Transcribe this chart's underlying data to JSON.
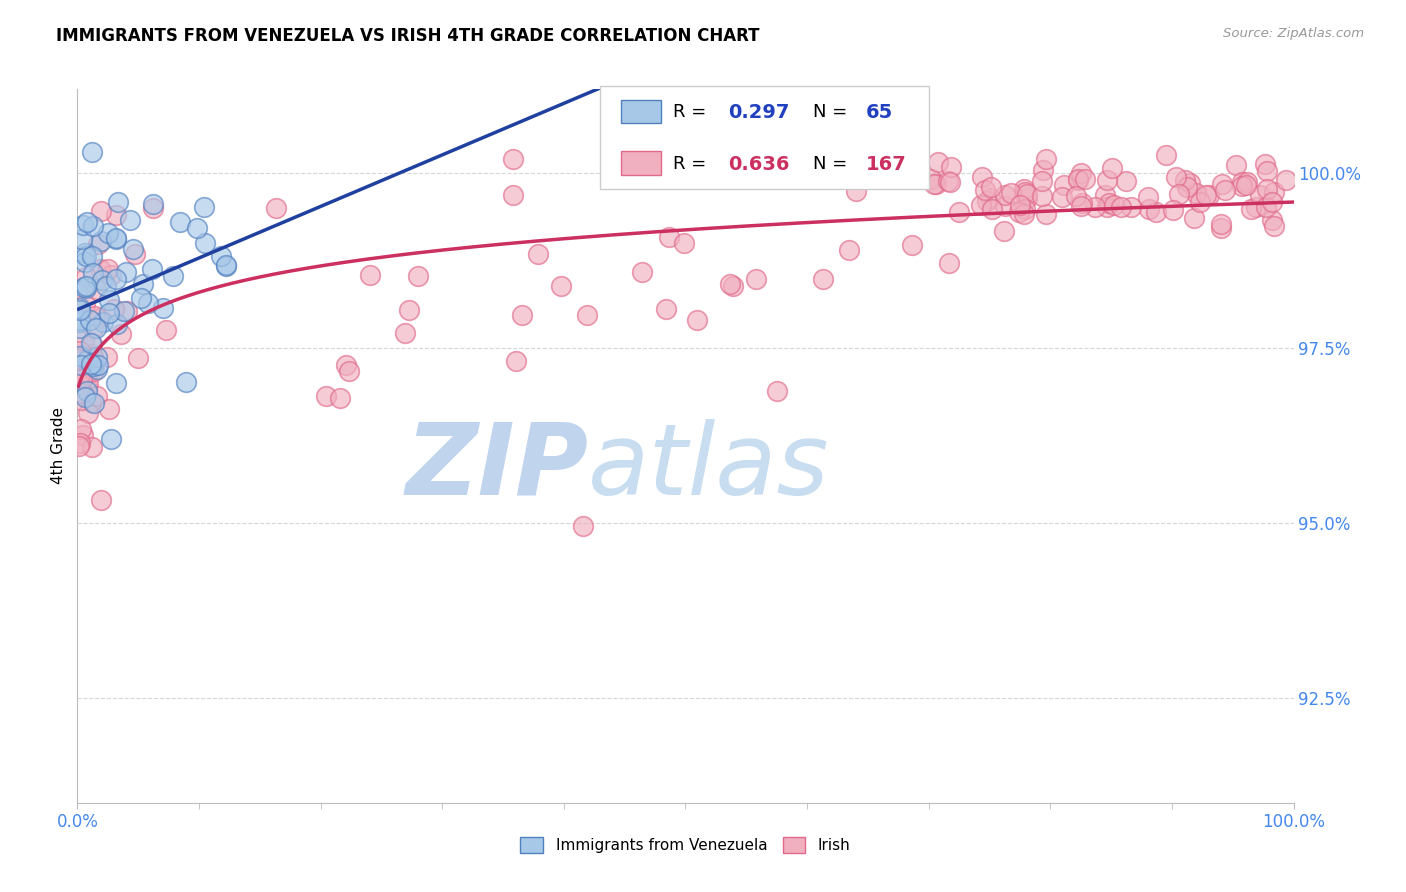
{
  "title": "IMMIGRANTS FROM VENEZUELA VS IRISH 4TH GRADE CORRELATION CHART",
  "source": "Source: ZipAtlas.com",
  "ylabel": "4th Grade",
  "ytick_labels": [
    "92.5%",
    "95.0%",
    "97.5%",
    "100.0%"
  ],
  "ytick_values": [
    92.5,
    95.0,
    97.5,
    100.0
  ],
  "xlim": [
    0.0,
    100.0
  ],
  "ylim": [
    91.0,
    101.2
  ],
  "legend_label1": "Immigrants from Venezuela",
  "legend_label2": "Irish",
  "r1": 0.297,
  "n1": 65,
  "r2": 0.636,
  "n2": 167,
  "color_blue_fill": "#a8c8e8",
  "color_blue_edge": "#5080c0",
  "color_pink_fill": "#f0b0c0",
  "color_pink_edge": "#e06888",
  "color_blue_line": "#2040a0",
  "color_pink_line": "#cc3060",
  "color_blue_text": "#2040c0",
  "color_pink_text": "#cc3060",
  "color_tick_labels": "#4488ee",
  "watermark_zip_color": "#c0d4ee",
  "watermark_atlas_color": "#c8ddf0"
}
